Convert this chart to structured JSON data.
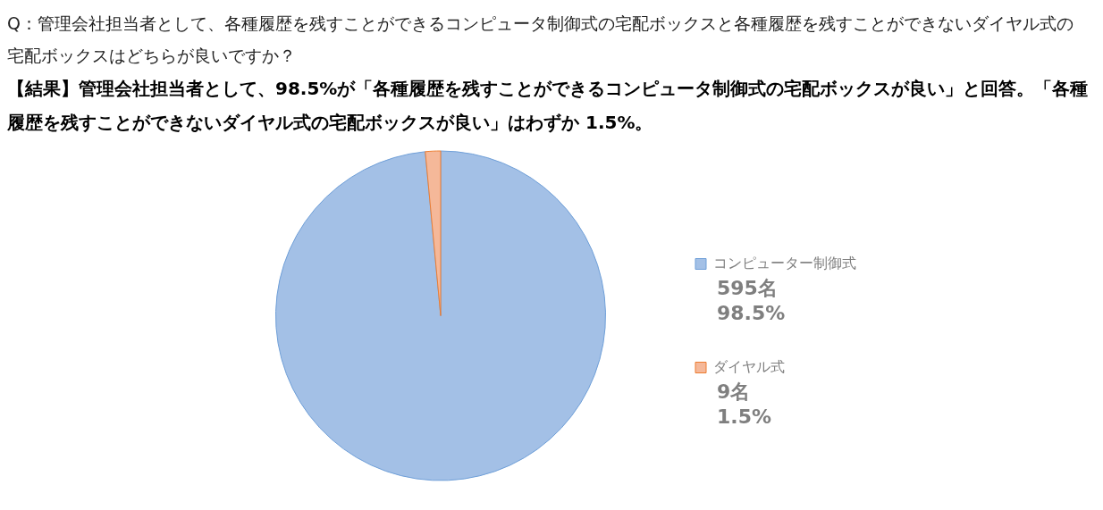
{
  "chart_data": {
    "type": "pie",
    "title": "Q：管理会社担当者として、各種履歴を残すことができるコンピュータ制御式の宅配ボックスと各種履歴を残すことができないダイヤル式の宅配ボックスはどちらが良いですか？",
    "subtitle": "【結果】管理会社担当者として、98.5%が「各種履歴を残すことができるコンピュータ制御式の宅配ボックスが良い」と回答。「各種履歴を残すことができないダイヤル式の宅配ボックスが良い」はわずか 1.5%。",
    "categories": [
      "コンピューター制御式",
      "ダイヤル式"
    ],
    "values": [
      595,
      9
    ],
    "colors": [
      "#a3c0e6",
      "#f5b899"
    ],
    "value_labels": [
      "595名\n98.5%",
      "9名\n1.5%"
    ],
    "legend": "right"
  }
}
